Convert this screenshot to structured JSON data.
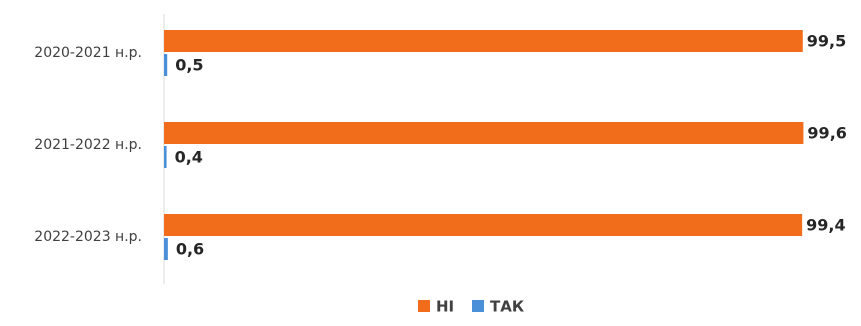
{
  "chart_data": {
    "type": "bar",
    "orientation": "horizontal",
    "categories": [
      "2020-2021 н.р.",
      "2021-2022 н.р.",
      "2022-2023 н.р."
    ],
    "series": [
      {
        "name": "НІ",
        "values": [
          99.5,
          99.6,
          99.4
        ],
        "labels": [
          "99,5",
          "99,6",
          "99,4"
        ],
        "color": "#f26d1b"
      },
      {
        "name": "ТАК",
        "values": [
          0.5,
          0.4,
          0.6
        ],
        "labels": [
          "0,5",
          "0,4",
          "0,6"
        ],
        "color": "#4a90d9"
      }
    ],
    "xlim": [
      0,
      100
    ],
    "grid": false,
    "legend_position": "bottom"
  }
}
